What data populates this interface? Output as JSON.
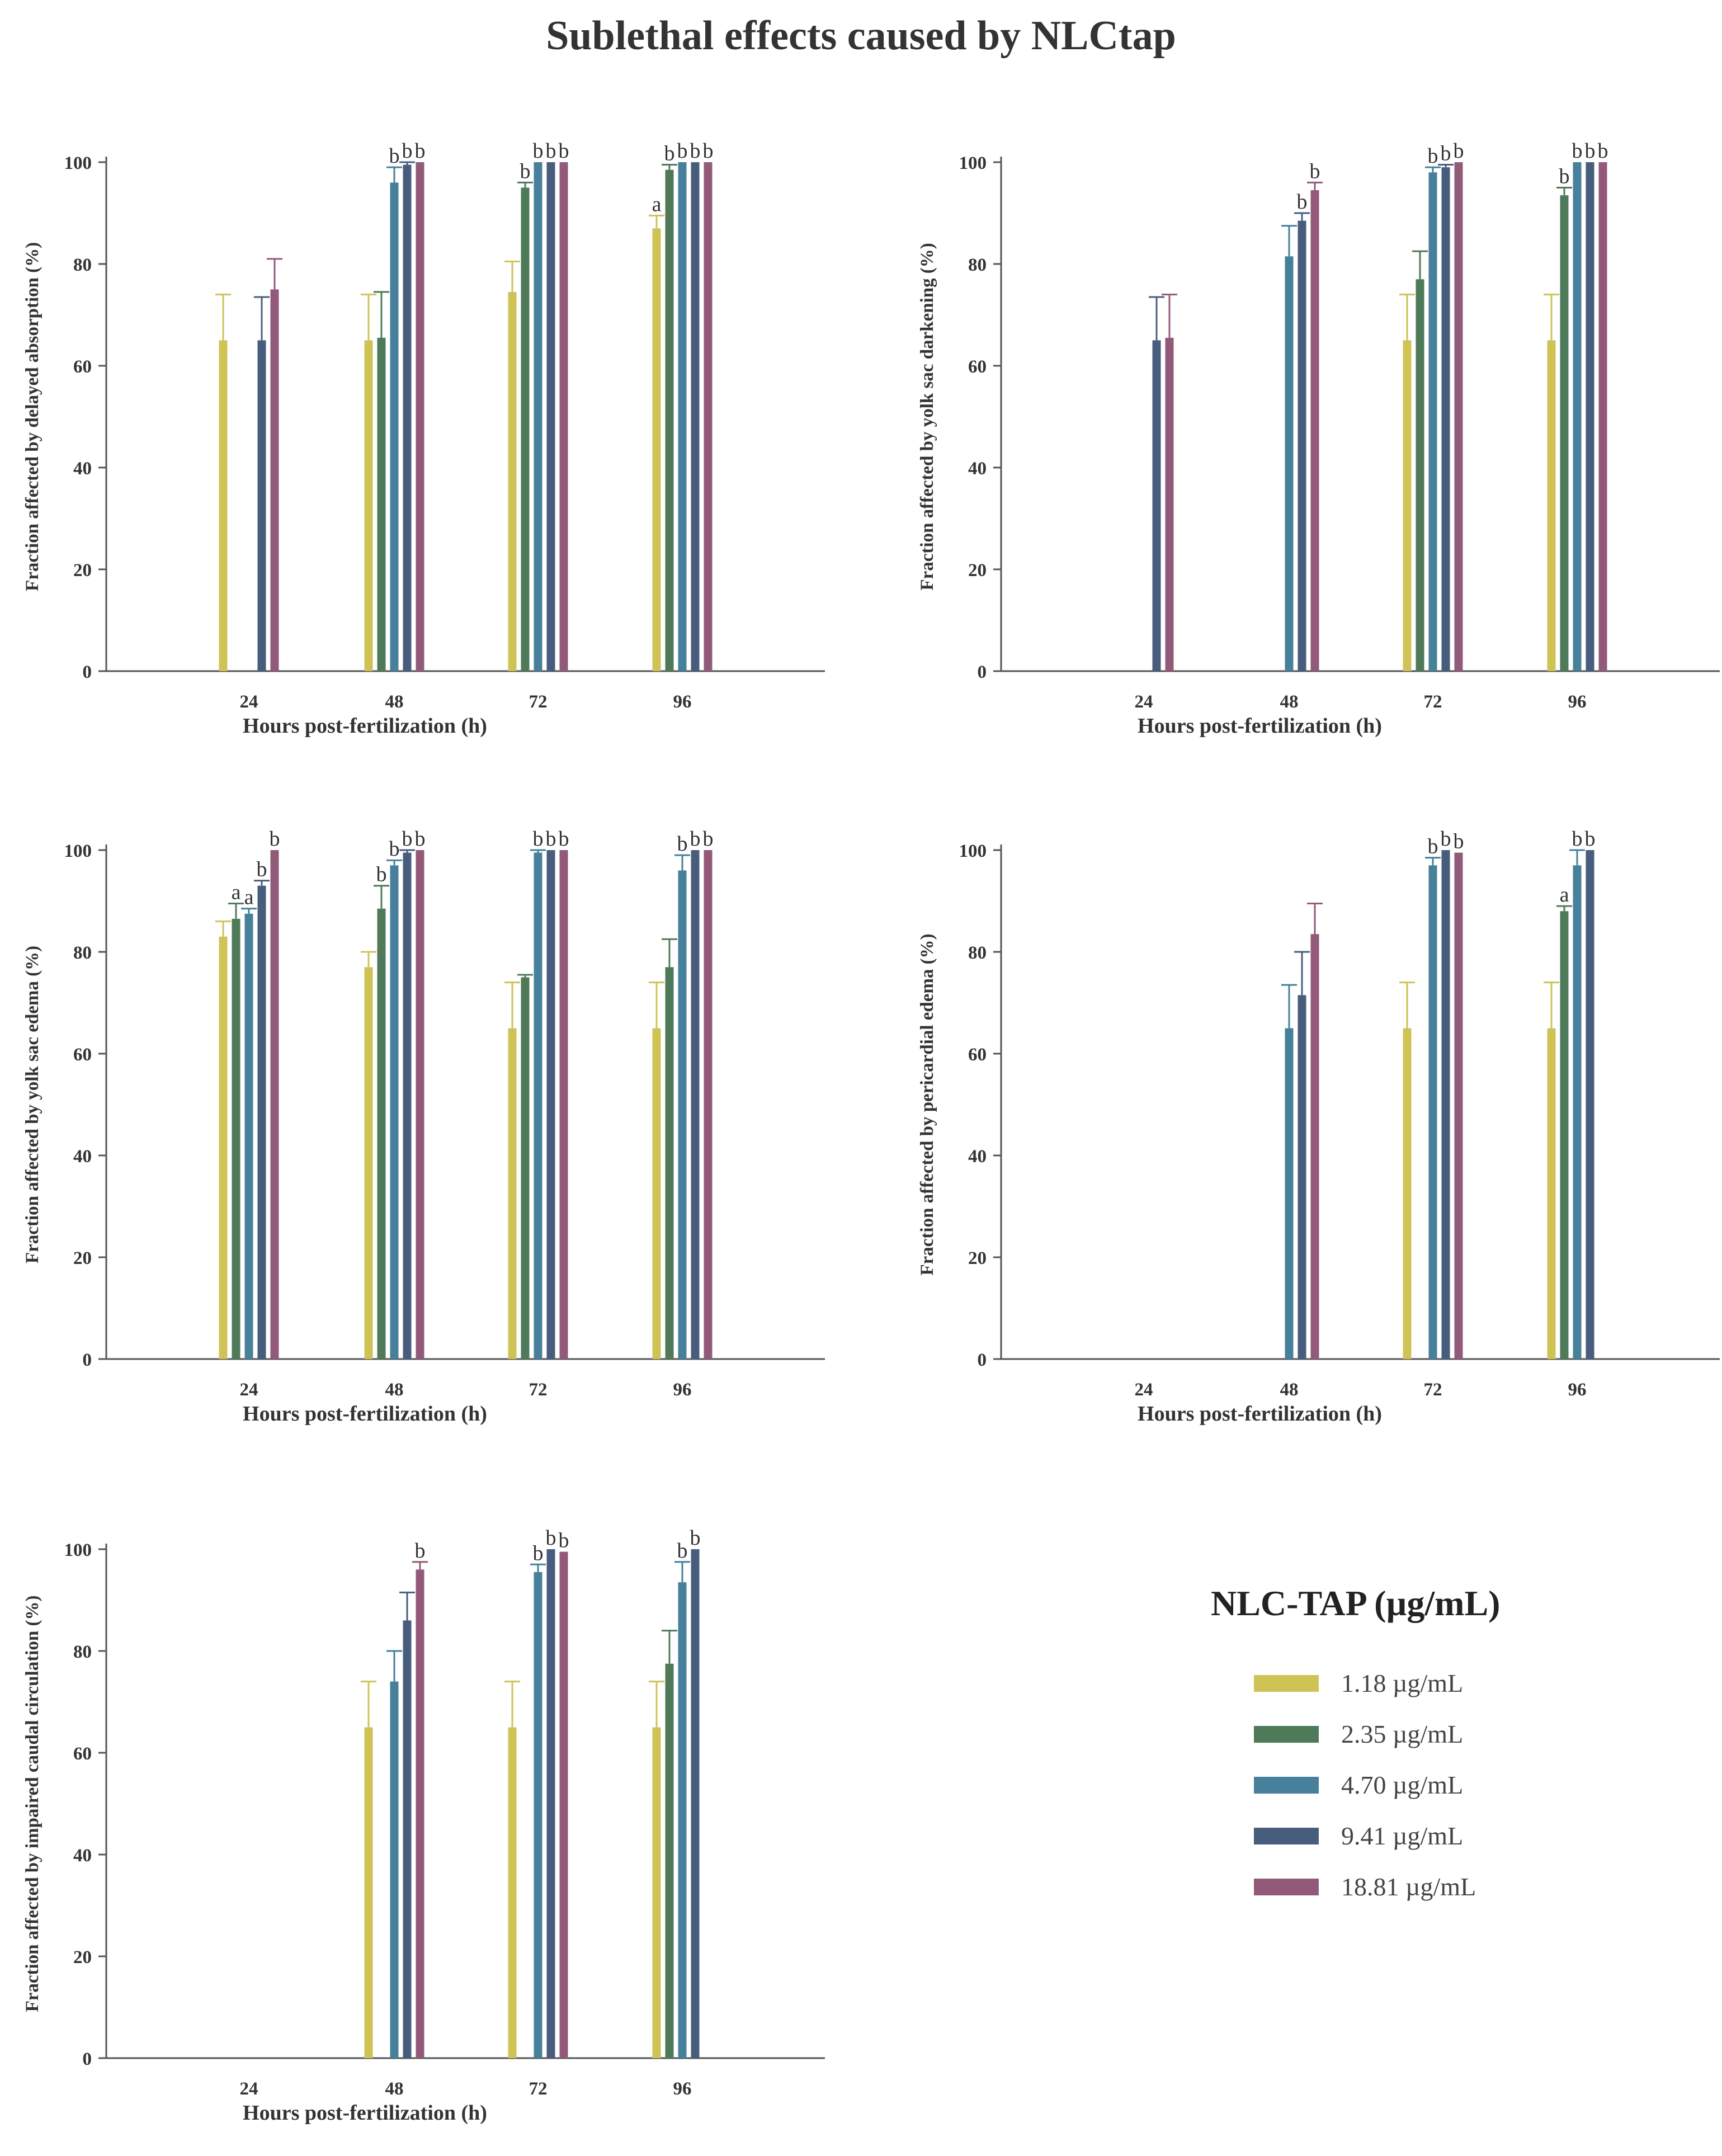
{
  "title": "Sublethal effects caused by NLCtap",
  "legend": {
    "title": "NLC-TAP (µg/mL)",
    "items": [
      {
        "label": "1.18 µg/mL",
        "color": "#cfc356"
      },
      {
        "label": "2.35 µg/mL",
        "color": "#4e7a59"
      },
      {
        "label": "4.70 µg/mL",
        "color": "#46809a"
      },
      {
        "label": "9.41 µg/mL",
        "color": "#485d7d"
      },
      {
        "label": "18.81 µg/mL",
        "color": "#925a78"
      }
    ]
  },
  "chart_data": [
    {
      "type": "bar",
      "categories": [
        "24",
        "48",
        "72",
        "96"
      ],
      "xlabel": "Hours post-fertilization (h)",
      "ylabel": "Fraction affected by delayed absorption (%)",
      "ylim": [
        0,
        100
      ],
      "yticks": [
        0,
        20,
        40,
        60,
        80,
        100
      ],
      "series": [
        {
          "name": "1.18 µg/mL",
          "values": [
            65,
            65,
            74.5,
            87
          ],
          "errors": [
            9,
            9,
            6,
            2.5
          ],
          "sig": [
            "",
            "",
            "",
            "a"
          ]
        },
        {
          "name": "2.35 µg/mL",
          "values": [
            0,
            65.5,
            95,
            98.5
          ],
          "errors": [
            0,
            9,
            1,
            1
          ],
          "sig": [
            "",
            "",
            "b",
            "b"
          ]
        },
        {
          "name": "4.70 µg/mL",
          "values": [
            0,
            96,
            100,
            100
          ],
          "errors": [
            0,
            3,
            0,
            0
          ],
          "sig": [
            "",
            "b",
            "b",
            "b"
          ]
        },
        {
          "name": "9.41 µg/mL",
          "values": [
            65,
            99.5,
            100,
            100
          ],
          "errors": [
            8.5,
            0.5,
            0,
            0
          ],
          "sig": [
            "",
            "b",
            "b",
            "b"
          ]
        },
        {
          "name": "18.81 µg/mL",
          "values": [
            75,
            100,
            100,
            100
          ],
          "errors": [
            6,
            0,
            0,
            0
          ],
          "sig": [
            "",
            "b",
            "b",
            "b"
          ]
        }
      ]
    },
    {
      "type": "bar",
      "categories": [
        "24",
        "48",
        "72",
        "96"
      ],
      "xlabel": "Hours post-fertilization (h)",
      "ylabel": "Fraction affected by yolk sac darkening (%)",
      "ylim": [
        0,
        100
      ],
      "yticks": [
        0,
        20,
        40,
        60,
        80,
        100
      ],
      "series": [
        {
          "name": "1.18 µg/mL",
          "values": [
            0,
            0,
            65,
            65
          ],
          "errors": [
            0,
            0,
            9,
            9
          ],
          "sig": [
            "",
            "",
            "",
            ""
          ]
        },
        {
          "name": "2.35 µg/mL",
          "values": [
            0,
            0,
            77,
            93.5
          ],
          "errors": [
            0,
            0,
            5.5,
            1.5
          ],
          "sig": [
            "",
            "",
            "",
            "b"
          ]
        },
        {
          "name": "4.70 µg/mL",
          "values": [
            0,
            81.5,
            98,
            100
          ],
          "errors": [
            0,
            6,
            1,
            0
          ],
          "sig": [
            "",
            "",
            "b",
            "b"
          ]
        },
        {
          "name": "9.41 µg/mL",
          "values": [
            65,
            88.5,
            99,
            100
          ],
          "errors": [
            8.5,
            1.5,
            0.5,
            0
          ],
          "sig": [
            "",
            "b",
            "b",
            "b"
          ]
        },
        {
          "name": "18.81 µg/mL",
          "values": [
            65.5,
            94.5,
            100,
            100
          ],
          "errors": [
            8.5,
            1.5,
            0,
            0
          ],
          "sig": [
            "",
            "b",
            "b",
            "b"
          ]
        }
      ]
    },
    {
      "type": "bar",
      "categories": [
        "24",
        "48",
        "72",
        "96"
      ],
      "xlabel": "Hours post-fertilization (h)",
      "ylabel": "Fraction affected by yolk sac edema (%)",
      "ylim": [
        0,
        100
      ],
      "yticks": [
        0,
        20,
        40,
        60,
        80,
        100
      ],
      "series": [
        {
          "name": "1.18 µg/mL",
          "values": [
            83,
            77,
            65,
            65
          ],
          "errors": [
            3,
            3,
            9,
            9
          ],
          "sig": [
            "",
            "",
            "",
            ""
          ]
        },
        {
          "name": "2.35 µg/mL",
          "values": [
            86.5,
            88.5,
            75,
            77
          ],
          "errors": [
            3,
            4.5,
            0.5,
            5.5
          ],
          "sig": [
            "a",
            "b",
            "",
            ""
          ]
        },
        {
          "name": "4.70 µg/mL",
          "values": [
            87.5,
            97,
            99.5,
            96
          ],
          "errors": [
            1,
            1,
            0.5,
            3
          ],
          "sig": [
            "a",
            "b",
            "b",
            "b"
          ]
        },
        {
          "name": "9.41 µg/mL",
          "values": [
            93,
            99.5,
            100,
            100
          ],
          "errors": [
            1,
            0.5,
            0,
            0
          ],
          "sig": [
            "b",
            "b",
            "b",
            "b"
          ]
        },
        {
          "name": "18.81 µg/mL",
          "values": [
            100,
            100,
            100,
            100
          ],
          "errors": [
            0,
            0,
            0,
            0
          ],
          "sig": [
            "b",
            "b",
            "b",
            "b"
          ]
        }
      ]
    },
    {
      "type": "bar",
      "categories": [
        "24",
        "48",
        "72",
        "96"
      ],
      "xlabel": "Hours post-fertilization (h)",
      "ylabel": "Fraction affected by pericardial edema (%)",
      "ylim": [
        0,
        100
      ],
      "yticks": [
        0,
        20,
        40,
        60,
        80,
        100
      ],
      "series": [
        {
          "name": "1.18 µg/mL",
          "values": [
            0,
            0,
            65,
            65
          ],
          "errors": [
            0,
            0,
            9,
            9
          ],
          "sig": [
            "",
            "",
            "",
            ""
          ]
        },
        {
          "name": "2.35 µg/mL",
          "values": [
            0,
            0,
            0,
            88
          ],
          "errors": [
            0,
            0,
            0,
            1
          ],
          "sig": [
            "",
            "",
            "",
            "a"
          ]
        },
        {
          "name": "4.70 µg/mL",
          "values": [
            0,
            65,
            97,
            97
          ],
          "errors": [
            0,
            8.5,
            1.5,
            3
          ],
          "sig": [
            "",
            "",
            "b",
            "b"
          ]
        },
        {
          "name": "9.41 µg/mL",
          "values": [
            0,
            71.5,
            100,
            100
          ],
          "errors": [
            0,
            8.5,
            0,
            0
          ],
          "sig": [
            "",
            "",
            "b",
            "b"
          ]
        },
        {
          "name": "18.81 µg/mL",
          "values": [
            0,
            83.5,
            99.5,
            0
          ],
          "errors": [
            0,
            6,
            0,
            0
          ],
          "sig": [
            "",
            "",
            "b",
            ""
          ]
        }
      ]
    },
    {
      "type": "bar",
      "categories": [
        "24",
        "48",
        "72",
        "96"
      ],
      "xlabel": "Hours post-fertilization (h)",
      "ylabel": "Fraction affected by impaired caudal circulation (%)",
      "ylim": [
        0,
        100
      ],
      "yticks": [
        0,
        20,
        40,
        60,
        80,
        100
      ],
      "series": [
        {
          "name": "1.18 µg/mL",
          "values": [
            0,
            65,
            65,
            65
          ],
          "errors": [
            0,
            9,
            9,
            9
          ],
          "sig": [
            "",
            "",
            "",
            ""
          ]
        },
        {
          "name": "2.35 µg/mL",
          "values": [
            0,
            0,
            0,
            77.5
          ],
          "errors": [
            0,
            0,
            0,
            6.5
          ],
          "sig": [
            "",
            "",
            "",
            ""
          ]
        },
        {
          "name": "4.70 µg/mL",
          "values": [
            0,
            74,
            95.5,
            93.5
          ],
          "errors": [
            0,
            6,
            1.5,
            4
          ],
          "sig": [
            "",
            "",
            "b",
            "b"
          ]
        },
        {
          "name": "9.41 µg/mL",
          "values": [
            0,
            86,
            100,
            100
          ],
          "errors": [
            0,
            5.5,
            0,
            0
          ],
          "sig": [
            "",
            "",
            "b",
            "b"
          ]
        },
        {
          "name": "18.81 µg/mL",
          "values": [
            0,
            96,
            99.5,
            0
          ],
          "errors": [
            0,
            1.5,
            0,
            0
          ],
          "sig": [
            "",
            "b",
            "b",
            ""
          ]
        }
      ]
    }
  ]
}
